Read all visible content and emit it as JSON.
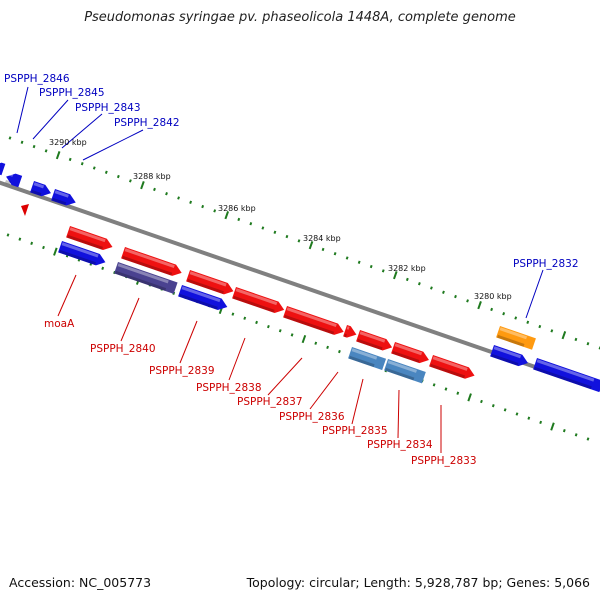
{
  "title": "Pseudomonas syringae pv. phaseolicola 1448A, complete genome",
  "footer": {
    "accession": "Accession: NC_005773",
    "stats": "Topology: circular; Length: 5,928,787 bp; Genes: 5,066"
  },
  "colors": {
    "backbone": "#808080",
    "tick": "#1f7a1f",
    "label_top": "#0000c0",
    "label_bottom": "#cc0000",
    "gene_red": "#ee1111",
    "gene_blue": "#1111dd",
    "gene_purple": "#4a4290",
    "gene_steel": "#4a86c0",
    "gene_orange": "#ff9a10"
  },
  "scale_labels": [
    "3290 kbp",
    "3288 kbp",
    "3286 kbp",
    "3284 kbp",
    "3282 kbp",
    "3280 kbp"
  ],
  "top_labels": [
    "PSPPH_2846",
    "PSPPH_2845",
    "PSPPH_2843",
    "PSPPH_2842",
    "PSPPH_2832"
  ],
  "bottom_labels": [
    "moaA",
    "PSPPH_2840",
    "PSPPH_2839",
    "PSPPH_2838",
    "PSPPH_2837",
    "PSPPH_2836",
    "PSPPH_2835",
    "PSPPH_2834",
    "PSPPH_2833"
  ]
}
